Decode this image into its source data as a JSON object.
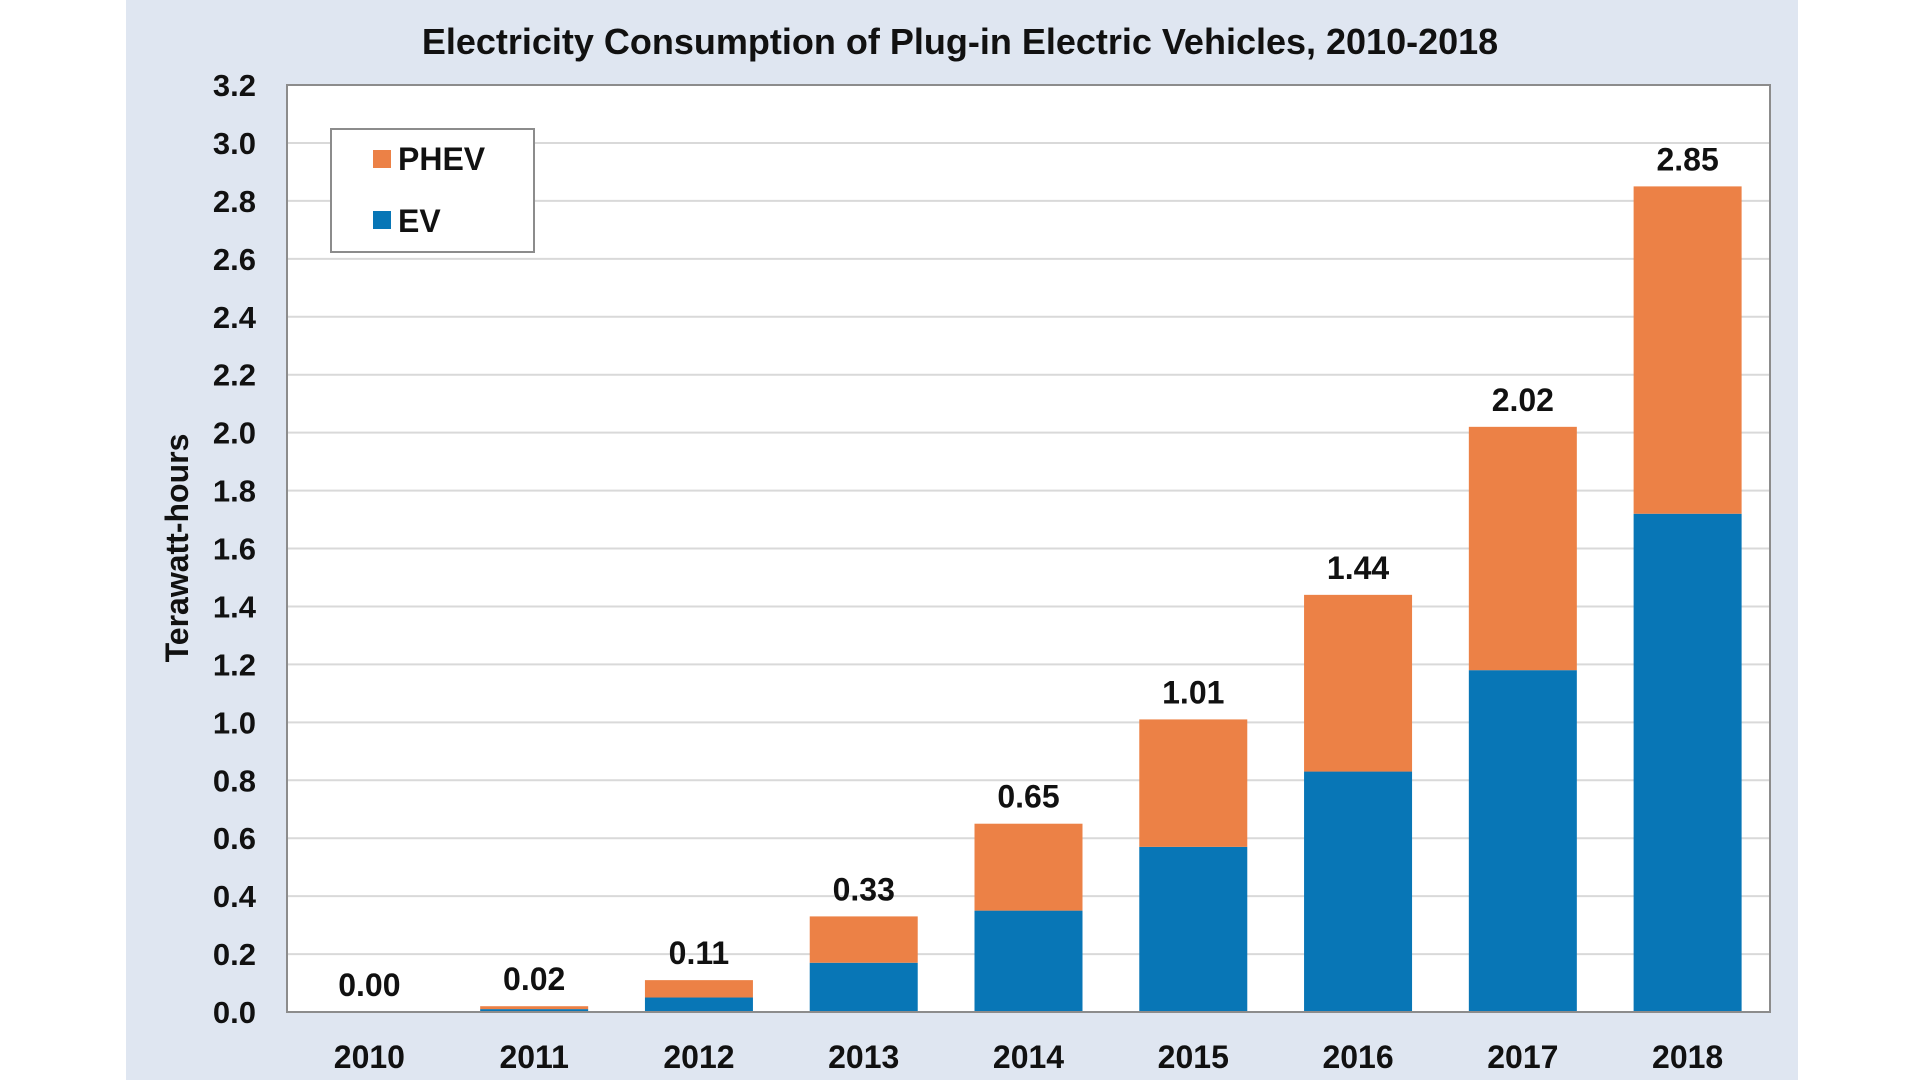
{
  "colors": {
    "panel_background": "#dfe6f1",
    "plot_background": "#ffffff",
    "gridline": "#d9d9d9",
    "axis_line": "#8c8c8c",
    "text": "#111111"
  },
  "chart_data": {
    "type": "bar",
    "stacked": true,
    "title": "Electricity Consumption of Plug-in Electric Vehicles, 2010-2018",
    "xlabel": "",
    "ylabel": "Terawatt-hours",
    "ylim": [
      0,
      3.2
    ],
    "ytick_step": 0.2,
    "ytick_labels": [
      "0.0",
      "0.2",
      "0.4",
      "0.6",
      "0.8",
      "1.0",
      "1.2",
      "1.4",
      "1.6",
      "1.8",
      "2.0",
      "2.2",
      "2.4",
      "2.6",
      "2.8",
      "3.0",
      "3.2"
    ],
    "categories": [
      "2010",
      "2011",
      "2012",
      "2013",
      "2014",
      "2015",
      "2016",
      "2017",
      "2018"
    ],
    "series": [
      {
        "name": "EV",
        "color": "#0876b6",
        "values": [
          0.0,
          0.01,
          0.05,
          0.17,
          0.35,
          0.57,
          0.83,
          1.18,
          1.72
        ]
      },
      {
        "name": "PHEV",
        "color": "#ec8146",
        "values": [
          0.0,
          0.01,
          0.06,
          0.16,
          0.3,
          0.44,
          0.61,
          0.84,
          1.13
        ]
      }
    ],
    "totals": [
      0.0,
      0.02,
      0.11,
      0.33,
      0.65,
      1.01,
      1.44,
      2.02,
      2.85
    ],
    "total_labels": [
      "0.00",
      "0.02",
      "0.11",
      "0.33",
      "0.65",
      "1.01",
      "1.44",
      "2.02",
      "2.85"
    ],
    "legend": {
      "position": "top-left",
      "order": [
        "PHEV",
        "EV"
      ]
    },
    "grid": {
      "horizontal": true,
      "vertical": false
    }
  }
}
